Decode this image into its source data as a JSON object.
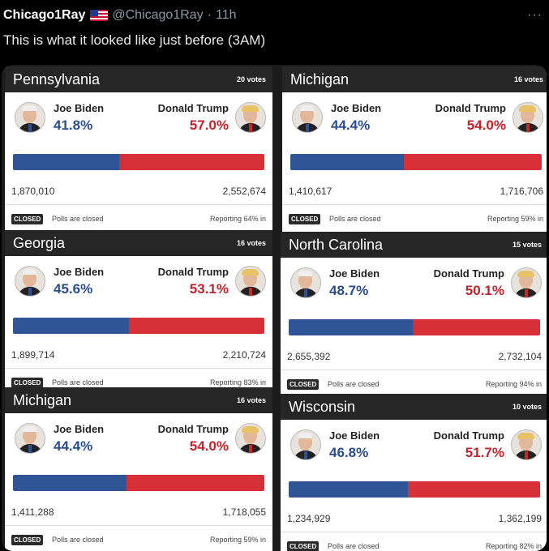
{
  "tweet": {
    "name": "Chicago1Ray",
    "handle": "@Chicago1Ray",
    "separator": "·",
    "time": "11h",
    "more": "···",
    "text": "This is what it looked like just before (3AM)"
  },
  "colors": {
    "biden": "#2f5597",
    "trump": "#d62f35",
    "header": "#262626"
  },
  "cards": [
    {
      "state": "Pennsylvania",
      "votes": "20 votes",
      "biden_name": "Joe Biden",
      "trump_name": "Donald Trump",
      "biden_pct": "41.8%",
      "trump_pct": "57.0%",
      "biden_share": 41.8,
      "trump_share": 57.0,
      "biden_count": "1,870,010",
      "trump_count": "2,552,674",
      "closed": "CLOSED",
      "closed_text": "Polls are closed",
      "reporting": "Reporting 64% in"
    },
    {
      "state": "Michigan",
      "votes": "16 votes",
      "biden_name": "Joe Biden",
      "trump_name": "Donald Trump",
      "biden_pct": "44.4%",
      "trump_pct": "54.0%",
      "biden_share": 44.4,
      "trump_share": 54.0,
      "biden_count": "1,410,617",
      "trump_count": "1,716,706",
      "closed": "CLOSED",
      "closed_text": "Polls are closed",
      "reporting": "Reporting 59% in"
    },
    {
      "state": "Georgia",
      "votes": "16 votes",
      "biden_name": "Joe Biden",
      "trump_name": "Donald Trump",
      "biden_pct": "45.6%",
      "trump_pct": "53.1%",
      "biden_share": 45.6,
      "trump_share": 53.1,
      "biden_count": "1,899,714",
      "trump_count": "2,210,724",
      "closed": "CLOSED",
      "closed_text": "Polls are closed",
      "reporting": "Reporting 83% in"
    },
    {
      "state": "North Carolina",
      "votes": "15 votes",
      "biden_name": "Joe Biden",
      "trump_name": "Donald Trump",
      "biden_pct": "48.7%",
      "trump_pct": "50.1%",
      "biden_share": 48.7,
      "trump_share": 50.1,
      "biden_count": "2,655,392",
      "trump_count": "2,732,104",
      "closed": "CLOSED",
      "closed_text": "Polls are closed",
      "reporting": "Reporting 94% in"
    },
    {
      "state": "Michigan",
      "votes": "16 votes",
      "biden_name": "Joe Biden",
      "trump_name": "Donald Trump",
      "biden_pct": "44.4%",
      "trump_pct": "54.0%",
      "biden_share": 44.4,
      "trump_share": 54.0,
      "biden_count": "1,411,288",
      "trump_count": "1,718,055",
      "closed": "CLOSED",
      "closed_text": "Polls are closed",
      "reporting": "Reporting 59% in"
    },
    {
      "state": "Wisconsin",
      "votes": "10 votes",
      "biden_name": "Joe Biden",
      "trump_name": "Donald Trump",
      "biden_pct": "46.8%",
      "trump_pct": "51.7%",
      "biden_share": 46.8,
      "trump_share": 51.7,
      "biden_count": "1,234,929",
      "trump_count": "1,362,199",
      "closed": "CLOSED",
      "closed_text": "Polls are closed",
      "reporting": "Reporting 82% in"
    }
  ]
}
